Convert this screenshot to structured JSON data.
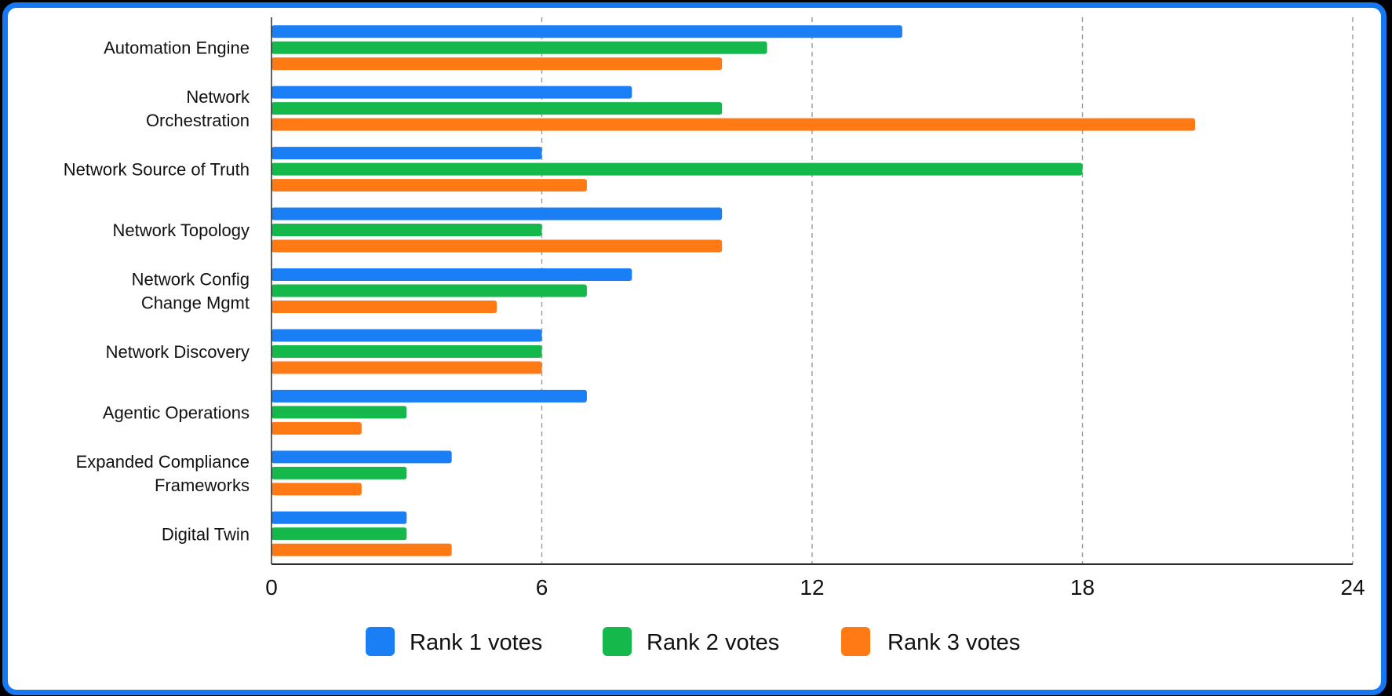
{
  "chart_data": {
    "type": "bar",
    "orientation": "horizontal",
    "categories": [
      [
        "Automation Engine"
      ],
      [
        "Network",
        "Orchestration"
      ],
      [
        "Network Source of Truth"
      ],
      [
        "Network Topology"
      ],
      [
        "Network Config",
        "Change Mgmt"
      ],
      [
        "Network Discovery"
      ],
      [
        "Agentic Operations"
      ],
      [
        "Expanded Compliance",
        "Frameworks"
      ],
      [
        "Digital Twin"
      ]
    ],
    "series": [
      {
        "name": "Rank 1 votes",
        "color": "#1a7ff5",
        "values": [
          14,
          8,
          6,
          10,
          8,
          6,
          7,
          4,
          3
        ]
      },
      {
        "name": "Rank 2 votes",
        "color": "#15b84a",
        "values": [
          11,
          10,
          18,
          6,
          7,
          6,
          3,
          3,
          3
        ]
      },
      {
        "name": "Rank 3 votes",
        "color": "#ff7a14",
        "values": [
          10,
          20.5,
          7,
          10,
          5,
          6,
          2,
          2,
          4
        ]
      }
    ],
    "x_ticks": [
      "0",
      "6",
      "12",
      "18",
      "24"
    ],
    "xlim": [
      0,
      24
    ],
    "grid": "vertical dashed",
    "legend_position": "bottom-center"
  }
}
